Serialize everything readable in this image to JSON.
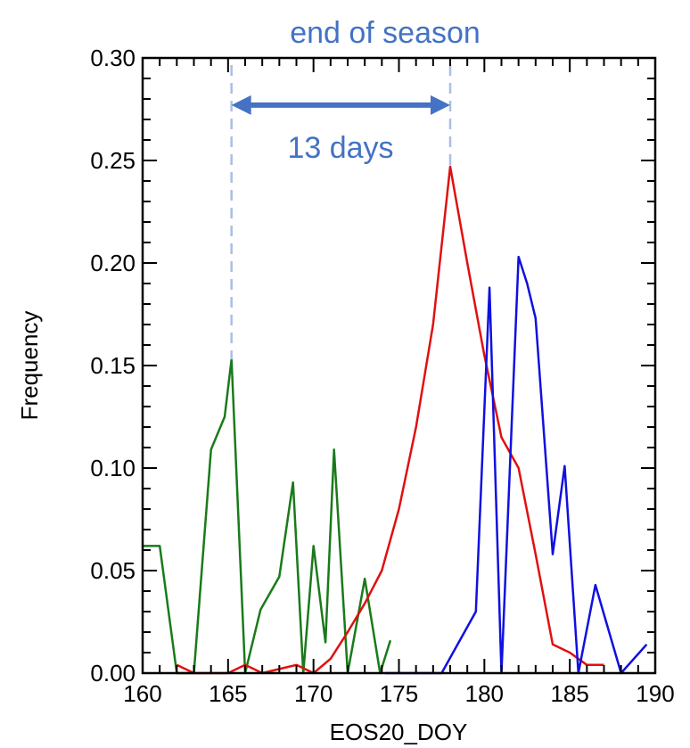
{
  "chart_data": {
    "type": "line",
    "title": "",
    "xlabel": "EOS20_DOY",
    "ylabel": "Frequency",
    "xlim": [
      160,
      190
    ],
    "ylim": [
      0,
      0.3
    ],
    "xticks": [
      160,
      165,
      170,
      175,
      180,
      185,
      190
    ],
    "yticks": [
      0.0,
      0.05,
      0.1,
      0.15,
      0.2,
      0.25,
      0.3
    ],
    "xtick_labels": [
      "160",
      "165",
      "170",
      "175",
      "180",
      "185",
      "190"
    ],
    "ytick_labels": [
      "0.00",
      "0.05",
      "0.10",
      "0.15",
      "0.20",
      "0.25",
      "0.30"
    ],
    "grid": false,
    "series": [
      {
        "color": "#1a7a1a",
        "x": [
          160,
          161,
          162,
          163,
          164,
          164.8,
          165.2,
          166,
          166.9,
          168,
          168.8,
          169.4,
          170,
          170.7,
          171.2,
          172,
          173,
          173.9,
          174.5
        ],
        "y": [
          0.062,
          0.062,
          0.0,
          0.0,
          0.109,
          0.125,
          0.153,
          0.0,
          0.031,
          0.047,
          0.093,
          0.0,
          0.062,
          0.015,
          0.109,
          0.0,
          0.046,
          0.0,
          0.016
        ]
      },
      {
        "color": "#e01010",
        "x": [
          162,
          163,
          164,
          165,
          166,
          167,
          168,
          169,
          170,
          171,
          172,
          173,
          174,
          175,
          176,
          177,
          178,
          179,
          180,
          181,
          182,
          183,
          184,
          185,
          186,
          187
        ],
        "y": [
          0.004,
          0.0,
          0.0,
          0.0,
          0.004,
          0.0,
          0.002,
          0.004,
          0.0,
          0.007,
          0.02,
          0.034,
          0.05,
          0.08,
          0.12,
          0.17,
          0.247,
          0.2,
          0.155,
          0.115,
          0.1,
          0.058,
          0.014,
          0.01,
          0.004,
          0.004
        ]
      },
      {
        "color": "#1010e0",
        "x": [
          174.2,
          175,
          176.5,
          177.5,
          178.5,
          179.5,
          180.3,
          181,
          182,
          182.5,
          183,
          184,
          184.7,
          185.5,
          186.5,
          188,
          189.5
        ],
        "y": [
          0.0,
          0.0,
          0.0,
          0.0,
          0.015,
          0.03,
          0.188,
          0.0,
          0.203,
          0.19,
          0.173,
          0.058,
          0.101,
          0.0,
          0.043,
          0.0,
          0.014
        ]
      }
    ],
    "annotations": {
      "title_text": "end of season",
      "arrow_text": "13 days",
      "text_color": "#4472c4",
      "arrow_from_x": 165.2,
      "arrow_to_x": 178,
      "arrow_y": 0.277,
      "guide_color": "#a9bfe6"
    }
  }
}
